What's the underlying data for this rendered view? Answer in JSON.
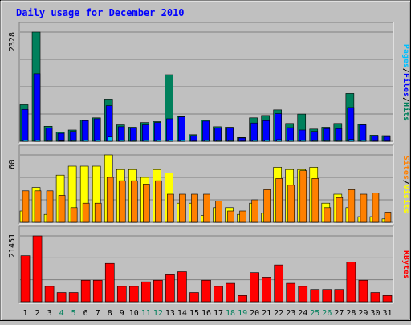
{
  "title": "Daily usage for December 2010",
  "colors": {
    "background": "#c0c0c0",
    "plot_background": "#c0c0c0",
    "title": "#0000ff",
    "hits": "#00805c",
    "files": "#0000ff",
    "pages": "#00c0ff",
    "visits": "#ffff00",
    "sites": "#ff8000",
    "kbytes": "#ff0000",
    "weekday_label": "#000000",
    "weekend_label": "#00805c",
    "gridline": "#808080"
  },
  "chart_data": [
    {
      "type": "bar",
      "panel": "top",
      "y_max_label": "2328",
      "ylim": [
        0,
        2328
      ],
      "right_label_parts": [
        "Pages",
        "/",
        "Files",
        "/",
        "Hits"
      ],
      "series": [
        {
          "name": "Hits",
          "values": [
            780,
            2328,
            320,
            200,
            240,
            450,
            500,
            900,
            350,
            300,
            400,
            420,
            1420,
            530,
            140,
            450,
            310,
            300,
            80,
            500,
            550,
            670,
            380,
            580,
            260,
            300,
            380,
            1020,
            360,
            130,
            120
          ]
        },
        {
          "name": "Files",
          "values": [
            680,
            1440,
            280,
            170,
            210,
            440,
            480,
            760,
            310,
            280,
            350,
            400,
            480,
            520,
            120,
            430,
            280,
            290,
            70,
            390,
            440,
            590,
            290,
            240,
            210,
            270,
            270,
            720,
            350,
            110,
            100
          ]
        },
        {
          "name": "Pages",
          "values": [
            25,
            30,
            15,
            10,
            15,
            25,
            30,
            90,
            20,
            15,
            20,
            25,
            30,
            25,
            5,
            20,
            15,
            15,
            5,
            20,
            25,
            35,
            20,
            20,
            15,
            15,
            15,
            40,
            20,
            5,
            5
          ]
        }
      ],
      "categories": [
        "1",
        "2",
        "3",
        "4",
        "5",
        "6",
        "7",
        "8",
        "9",
        "10",
        "11",
        "12",
        "13",
        "14",
        "15",
        "16",
        "17",
        "18",
        "19",
        "20",
        "21",
        "22",
        "23",
        "24",
        "25",
        "26",
        "27",
        "28",
        "29",
        "30",
        "31"
      ]
    },
    {
      "type": "bar",
      "panel": "middle",
      "y_max_label": "60",
      "ylim": [
        0,
        60
      ],
      "right_label_parts": [
        "Sites",
        "/",
        "Visits"
      ],
      "series": [
        {
          "name": "Visits",
          "values": [
            10,
            31,
            7,
            42,
            50,
            50,
            50,
            60,
            47,
            47,
            40,
            47,
            44,
            17,
            17,
            6,
            13,
            13,
            7,
            17,
            8,
            49,
            47,
            47,
            49,
            17,
            25,
            13,
            5,
            5,
            3
          ]
        },
        {
          "name": "Sites",
          "values": [
            28,
            28,
            28,
            24,
            13,
            17,
            17,
            40,
            37,
            37,
            34,
            37,
            25,
            25,
            25,
            25,
            19,
            10,
            10,
            20,
            29,
            39,
            33,
            46,
            39,
            13,
            22,
            29,
            25,
            26,
            9
          ]
        }
      ],
      "categories": [
        "1",
        "2",
        "3",
        "4",
        "5",
        "6",
        "7",
        "8",
        "9",
        "10",
        "11",
        "12",
        "13",
        "14",
        "15",
        "16",
        "17",
        "18",
        "19",
        "20",
        "21",
        "22",
        "23",
        "24",
        "25",
        "26",
        "27",
        "28",
        "29",
        "30",
        "31"
      ]
    },
    {
      "type": "bar",
      "panel": "bottom",
      "y_max_label": "21451",
      "ylim": [
        0,
        21451
      ],
      "right_label_parts": [
        "KBytes"
      ],
      "series": [
        {
          "name": "KBytes",
          "values": [
            15000,
            21451,
            5000,
            3000,
            3000,
            7000,
            7000,
            12500,
            5000,
            5000,
            6500,
            7000,
            8800,
            9800,
            3000,
            7000,
            5000,
            6000,
            2000,
            9500,
            8000,
            12000,
            6000,
            5000,
            4000,
            4000,
            4000,
            13000,
            7000,
            3000,
            2000
          ]
        }
      ],
      "categories": [
        "1",
        "2",
        "3",
        "4",
        "5",
        "6",
        "7",
        "8",
        "9",
        "10",
        "11",
        "12",
        "13",
        "14",
        "15",
        "16",
        "17",
        "18",
        "19",
        "20",
        "21",
        "22",
        "23",
        "24",
        "25",
        "26",
        "27",
        "28",
        "29",
        "30",
        "31"
      ]
    }
  ],
  "x_labels": [
    {
      "text": "1",
      "weekend": false
    },
    {
      "text": "2",
      "weekend": false
    },
    {
      "text": "3",
      "weekend": false
    },
    {
      "text": "4",
      "weekend": true
    },
    {
      "text": "5",
      "weekend": true
    },
    {
      "text": "6",
      "weekend": false
    },
    {
      "text": "7",
      "weekend": false
    },
    {
      "text": "8",
      "weekend": false
    },
    {
      "text": "9",
      "weekend": false
    },
    {
      "text": "10",
      "weekend": false
    },
    {
      "text": "11",
      "weekend": true
    },
    {
      "text": "12",
      "weekend": true
    },
    {
      "text": "13",
      "weekend": false
    },
    {
      "text": "14",
      "weekend": false
    },
    {
      "text": "15",
      "weekend": false
    },
    {
      "text": "16",
      "weekend": false
    },
    {
      "text": "17",
      "weekend": false
    },
    {
      "text": "18",
      "weekend": true
    },
    {
      "text": "19",
      "weekend": true
    },
    {
      "text": "20",
      "weekend": false
    },
    {
      "text": "21",
      "weekend": false
    },
    {
      "text": "22",
      "weekend": false
    },
    {
      "text": "23",
      "weekend": false
    },
    {
      "text": "24",
      "weekend": false
    },
    {
      "text": "25",
      "weekend": true
    },
    {
      "text": "26",
      "weekend": true
    },
    {
      "text": "27",
      "weekend": false
    },
    {
      "text": "28",
      "weekend": false
    },
    {
      "text": "29",
      "weekend": false
    },
    {
      "text": "30",
      "weekend": false
    },
    {
      "text": "31",
      "weekend": false
    }
  ]
}
